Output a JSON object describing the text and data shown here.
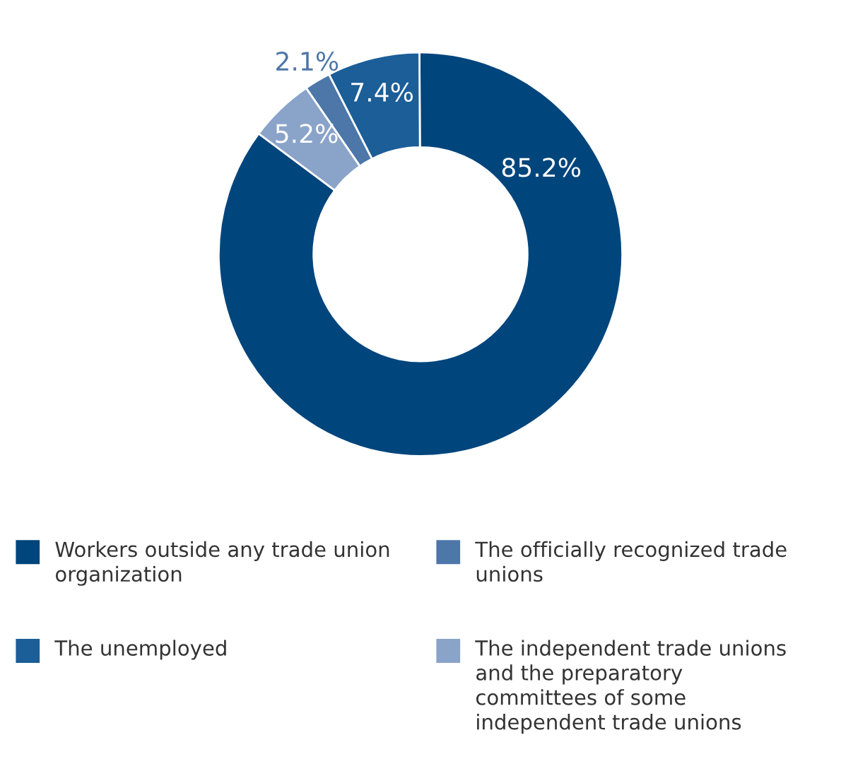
{
  "chart_data": {
    "type": "donut",
    "categories": [
      "Workers outside any trade union organization",
      "The unemployed",
      "The officially recognized trade unions",
      "The independent trade unions and the preparatory committees of some independent trade unions"
    ],
    "values": [
      85.2,
      7.4,
      2.1,
      5.2
    ],
    "value_labels": [
      "85.2%",
      "7.4%",
      "2.1%",
      "5.2%"
    ],
    "colors": [
      "#00457c",
      "#1b5e98",
      "#4d76a9",
      "#8aa3c9"
    ],
    "legend": "bottom"
  }
}
